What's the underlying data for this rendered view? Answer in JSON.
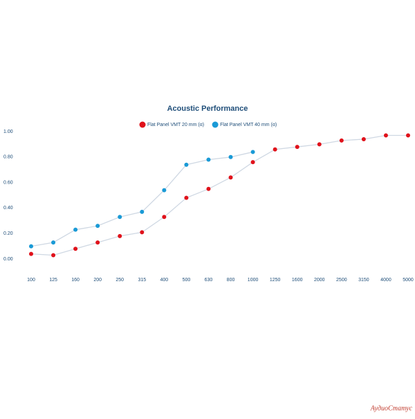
{
  "chart_data": {
    "type": "line",
    "title": "Acoustic Performance",
    "categories": [
      "100",
      "125",
      "160",
      "200",
      "250",
      "315",
      "400",
      "500",
      "630",
      "800",
      "1000",
      "1250",
      "1600",
      "2000",
      "2500",
      "3150",
      "4000",
      "5000"
    ],
    "series": [
      {
        "name": "Flat Panel VMT 20 mm (α)",
        "color": "#e0121b",
        "values": [
          0.04,
          0.03,
          0.08,
          0.13,
          0.18,
          0.21,
          0.33,
          0.48,
          0.55,
          0.64,
          0.76,
          0.86,
          0.88,
          0.9,
          0.93,
          0.94,
          0.97,
          0.97
        ]
      },
      {
        "name": "Flat Panel VMT 40 mm (α)",
        "color": "#1a9ad6",
        "values": [
          0.1,
          0.13,
          0.23,
          0.26,
          0.33,
          0.37,
          0.54,
          0.74,
          0.78,
          0.8,
          0.84,
          null,
          null,
          null,
          null,
          null,
          null,
          null
        ]
      }
    ],
    "line_color": "#cfd8e3",
    "ylim": [
      0,
      1
    ],
    "yticks": [
      {
        "value": 0,
        "label": "0.00"
      },
      {
        "value": 0.2,
        "label": "0.20"
      },
      {
        "value": 0.4,
        "label": "0.40"
      },
      {
        "value": 0.6,
        "label": "0.60"
      },
      {
        "value": 0.8,
        "label": "0.80"
      },
      {
        "value": 1,
        "label": "1.00"
      }
    ],
    "grid": false,
    "legend": "top",
    "watermark": "АудиоСтатус"
  }
}
